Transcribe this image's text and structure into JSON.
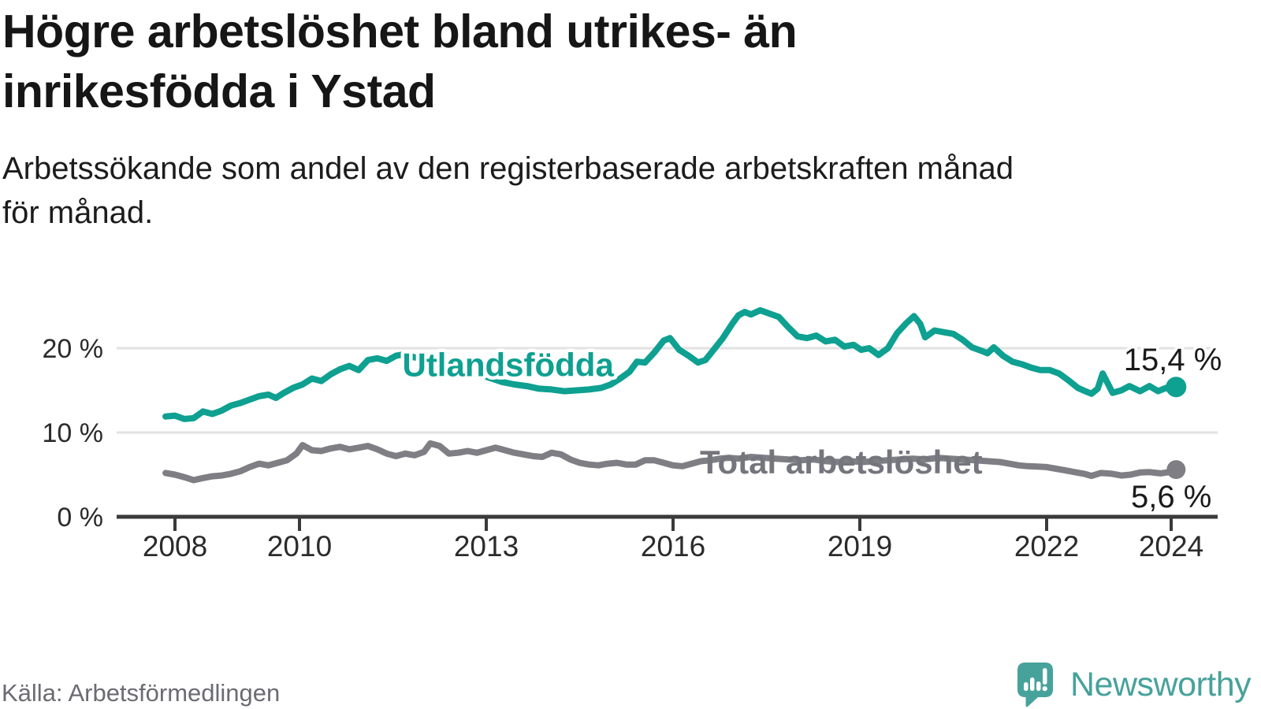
{
  "title_lines": [
    "Högre arbetslöshet bland utrikes- än",
    "inrikesfödda i Ystad"
  ],
  "subtitle_lines": [
    "Arbetssökande som andel av den registerbaserade arbetskraften månad",
    "för månad."
  ],
  "source": "Källa: Arbetsförmedlingen",
  "brand": {
    "name": "Newsworthy",
    "color": "#47a29b"
  },
  "colors": {
    "title": "#161616",
    "subtitle": "#1c1c1c",
    "gridline": "#e2e2e2",
    "axis": "#3a3a3a",
    "tick_label": "#2b2b2b",
    "value_label": "#1a1a1a",
    "foreign_born": "#0ea091",
    "total": "#7e7e84",
    "total_label": "#75757d",
    "source_text": "#6b6b73",
    "background": "#ffffff"
  },
  "chart_data": {
    "type": "line",
    "title": "Högre arbetslöshet bland utrikes- än inrikesfödda i Ystad",
    "subtitle": "Arbetssökande som andel av den registerbaserade arbetskraften månad för månad.",
    "xlabel": "",
    "ylabel": "",
    "y_unit": "%",
    "ylim": [
      0,
      26
    ],
    "xlim": [
      2007.1,
      2024.6
    ],
    "grid": "horizontal",
    "legend_position": "inline-labels",
    "x_ticks": [
      2008,
      2010,
      2013,
      2016,
      2019,
      2022,
      2024
    ],
    "y_ticks": [
      {
        "value": 0,
        "label": "0 %"
      },
      {
        "value": 10,
        "label": "10 %"
      },
      {
        "value": 20,
        "label": "20 %"
      }
    ],
    "series": [
      {
        "name": "Total arbetslöshet",
        "color": "#7e7e84",
        "label_color": "#75757d",
        "label_halo": false,
        "label_anchor": {
          "year": 2018.7,
          "value": 6.55
        },
        "end": {
          "year": 2024.08,
          "value": 5.6,
          "label": "5,6 %"
        },
        "points": [
          [
            2007.85,
            5.2
          ],
          [
            2008.0,
            5.0
          ],
          [
            2008.15,
            4.7
          ],
          [
            2008.3,
            4.35
          ],
          [
            2008.45,
            4.6
          ],
          [
            2008.6,
            4.8
          ],
          [
            2008.75,
            4.9
          ],
          [
            2008.9,
            5.1
          ],
          [
            2009.05,
            5.4
          ],
          [
            2009.2,
            5.9
          ],
          [
            2009.35,
            6.3
          ],
          [
            2009.5,
            6.1
          ],
          [
            2009.65,
            6.4
          ],
          [
            2009.8,
            6.7
          ],
          [
            2009.95,
            7.5
          ],
          [
            2010.05,
            8.5
          ],
          [
            2010.2,
            7.9
          ],
          [
            2010.35,
            7.8
          ],
          [
            2010.5,
            8.1
          ],
          [
            2010.65,
            8.3
          ],
          [
            2010.8,
            8.0
          ],
          [
            2010.95,
            8.2
          ],
          [
            2011.1,
            8.4
          ],
          [
            2011.25,
            8.0
          ],
          [
            2011.4,
            7.5
          ],
          [
            2011.55,
            7.2
          ],
          [
            2011.7,
            7.5
          ],
          [
            2011.85,
            7.3
          ],
          [
            2012.0,
            7.7
          ],
          [
            2012.1,
            8.7
          ],
          [
            2012.25,
            8.4
          ],
          [
            2012.4,
            7.5
          ],
          [
            2012.55,
            7.6
          ],
          [
            2012.7,
            7.8
          ],
          [
            2012.85,
            7.6
          ],
          [
            2013.0,
            7.9
          ],
          [
            2013.15,
            8.2
          ],
          [
            2013.3,
            7.9
          ],
          [
            2013.45,
            7.6
          ],
          [
            2013.6,
            7.4
          ],
          [
            2013.75,
            7.2
          ],
          [
            2013.9,
            7.1
          ],
          [
            2014.05,
            7.6
          ],
          [
            2014.2,
            7.4
          ],
          [
            2014.35,
            6.8
          ],
          [
            2014.5,
            6.4
          ],
          [
            2014.65,
            6.2
          ],
          [
            2014.8,
            6.1
          ],
          [
            2014.95,
            6.3
          ],
          [
            2015.1,
            6.4
          ],
          [
            2015.25,
            6.2
          ],
          [
            2015.4,
            6.2
          ],
          [
            2015.55,
            6.7
          ],
          [
            2015.7,
            6.7
          ],
          [
            2015.85,
            6.4
          ],
          [
            2016.0,
            6.1
          ],
          [
            2016.15,
            6.0
          ],
          [
            2016.3,
            6.3
          ],
          [
            2016.45,
            6.6
          ],
          [
            2016.6,
            6.7
          ],
          [
            2016.75,
            6.9
          ],
          [
            2016.9,
            7.0
          ],
          [
            2017.05,
            6.9
          ],
          [
            2017.25,
            7.1
          ],
          [
            2017.45,
            7.0
          ],
          [
            2017.65,
            6.9
          ],
          [
            2017.85,
            6.8
          ],
          [
            2018.05,
            6.7
          ],
          [
            2018.25,
            6.8
          ],
          [
            2018.45,
            6.6
          ],
          [
            2018.65,
            6.5
          ],
          [
            2018.85,
            6.6
          ],
          [
            2019.05,
            6.5
          ],
          [
            2019.25,
            6.6
          ],
          [
            2019.45,
            6.7
          ],
          [
            2019.65,
            6.8
          ],
          [
            2019.85,
            6.9
          ],
          [
            2020.05,
            6.8
          ],
          [
            2020.25,
            7.0
          ],
          [
            2020.45,
            6.9
          ],
          [
            2020.65,
            6.8
          ],
          [
            2020.85,
            6.7
          ],
          [
            2021.05,
            6.6
          ],
          [
            2021.25,
            6.5
          ],
          [
            2021.4,
            6.3
          ],
          [
            2021.55,
            6.1
          ],
          [
            2021.7,
            6.0
          ],
          [
            2021.85,
            5.95
          ],
          [
            2022.0,
            5.9
          ],
          [
            2022.15,
            5.7
          ],
          [
            2022.3,
            5.5
          ],
          [
            2022.45,
            5.3
          ],
          [
            2022.6,
            5.1
          ],
          [
            2022.72,
            4.85
          ],
          [
            2022.87,
            5.2
          ],
          [
            2023.05,
            5.1
          ],
          [
            2023.2,
            4.9
          ],
          [
            2023.35,
            5.0
          ],
          [
            2023.5,
            5.25
          ],
          [
            2023.65,
            5.3
          ],
          [
            2023.83,
            5.15
          ],
          [
            2024.0,
            5.35
          ],
          [
            2024.08,
            5.6
          ]
        ]
      },
      {
        "name": "Utlandsfödda",
        "color": "#0ea091",
        "label_color": "#0ea091",
        "label_halo": true,
        "label_anchor": {
          "year": 2013.35,
          "value": 18.1
        },
        "end": {
          "year": 2024.08,
          "value": 15.4,
          "label": "15,4 %"
        },
        "points": [
          [
            2007.85,
            11.9
          ],
          [
            2008.0,
            12.0
          ],
          [
            2008.15,
            11.6
          ],
          [
            2008.3,
            11.7
          ],
          [
            2008.45,
            12.5
          ],
          [
            2008.6,
            12.2
          ],
          [
            2008.75,
            12.6
          ],
          [
            2008.9,
            13.2
          ],
          [
            2009.05,
            13.5
          ],
          [
            2009.2,
            13.9
          ],
          [
            2009.35,
            14.3
          ],
          [
            2009.5,
            14.5
          ],
          [
            2009.62,
            14.1
          ],
          [
            2009.75,
            14.7
          ],
          [
            2009.9,
            15.3
          ],
          [
            2010.05,
            15.7
          ],
          [
            2010.2,
            16.4
          ],
          [
            2010.35,
            16.1
          ],
          [
            2010.5,
            16.9
          ],
          [
            2010.65,
            17.5
          ],
          [
            2010.8,
            17.9
          ],
          [
            2010.95,
            17.4
          ],
          [
            2011.1,
            18.6
          ],
          [
            2011.25,
            18.8
          ],
          [
            2011.4,
            18.5
          ],
          [
            2011.55,
            19.1
          ],
          [
            2011.7,
            19.3
          ],
          [
            2011.85,
            18.9
          ],
          [
            2012.0,
            19.0
          ],
          [
            2012.15,
            18.6
          ],
          [
            2012.3,
            18.5
          ],
          [
            2012.45,
            18.2
          ],
          [
            2012.6,
            17.8
          ],
          [
            2012.75,
            17.4
          ],
          [
            2012.9,
            16.9
          ],
          [
            2013.05,
            16.5
          ],
          [
            2013.25,
            16.0
          ],
          [
            2013.45,
            15.7
          ],
          [
            2013.65,
            15.5
          ],
          [
            2013.85,
            15.2
          ],
          [
            2014.05,
            15.1
          ],
          [
            2014.25,
            14.9
          ],
          [
            2014.45,
            15.0
          ],
          [
            2014.65,
            15.1
          ],
          [
            2014.85,
            15.3
          ],
          [
            2015.0,
            15.7
          ],
          [
            2015.15,
            16.4
          ],
          [
            2015.3,
            17.2
          ],
          [
            2015.42,
            18.4
          ],
          [
            2015.55,
            18.3
          ],
          [
            2015.7,
            19.5
          ],
          [
            2015.85,
            20.9
          ],
          [
            2015.95,
            21.2
          ],
          [
            2016.1,
            19.8
          ],
          [
            2016.25,
            19.1
          ],
          [
            2016.4,
            18.3
          ],
          [
            2016.52,
            18.6
          ],
          [
            2016.65,
            19.8
          ],
          [
            2016.8,
            21.2
          ],
          [
            2016.95,
            22.9
          ],
          [
            2017.05,
            23.9
          ],
          [
            2017.15,
            24.3
          ],
          [
            2017.25,
            24.0
          ],
          [
            2017.4,
            24.5
          ],
          [
            2017.55,
            24.1
          ],
          [
            2017.7,
            23.7
          ],
          [
            2017.85,
            22.5
          ],
          [
            2018.0,
            21.4
          ],
          [
            2018.15,
            21.2
          ],
          [
            2018.3,
            21.5
          ],
          [
            2018.45,
            20.8
          ],
          [
            2018.6,
            21.0
          ],
          [
            2018.75,
            20.2
          ],
          [
            2018.9,
            20.4
          ],
          [
            2019.02,
            19.8
          ],
          [
            2019.15,
            20.0
          ],
          [
            2019.3,
            19.2
          ],
          [
            2019.45,
            20.0
          ],
          [
            2019.6,
            21.8
          ],
          [
            2019.75,
            23.0
          ],
          [
            2019.87,
            23.8
          ],
          [
            2019.97,
            22.9
          ],
          [
            2020.05,
            21.3
          ],
          [
            2020.2,
            22.1
          ],
          [
            2020.35,
            21.9
          ],
          [
            2020.5,
            21.7
          ],
          [
            2020.65,
            21.0
          ],
          [
            2020.8,
            20.1
          ],
          [
            2020.95,
            19.7
          ],
          [
            2021.05,
            19.4
          ],
          [
            2021.15,
            20.1
          ],
          [
            2021.3,
            19.1
          ],
          [
            2021.45,
            18.4
          ],
          [
            2021.6,
            18.1
          ],
          [
            2021.75,
            17.7
          ],
          [
            2021.9,
            17.4
          ],
          [
            2022.05,
            17.4
          ],
          [
            2022.2,
            17.0
          ],
          [
            2022.35,
            16.2
          ],
          [
            2022.5,
            15.3
          ],
          [
            2022.62,
            14.9
          ],
          [
            2022.72,
            14.6
          ],
          [
            2022.82,
            15.2
          ],
          [
            2022.9,
            17.0
          ],
          [
            2023.06,
            14.7
          ],
          [
            2023.2,
            15.0
          ],
          [
            2023.33,
            15.5
          ],
          [
            2023.5,
            14.9
          ],
          [
            2023.65,
            15.5
          ],
          [
            2023.79,
            14.9
          ],
          [
            2023.92,
            15.3
          ],
          [
            2024.0,
            15.0
          ],
          [
            2024.08,
            15.4
          ]
        ]
      }
    ]
  }
}
